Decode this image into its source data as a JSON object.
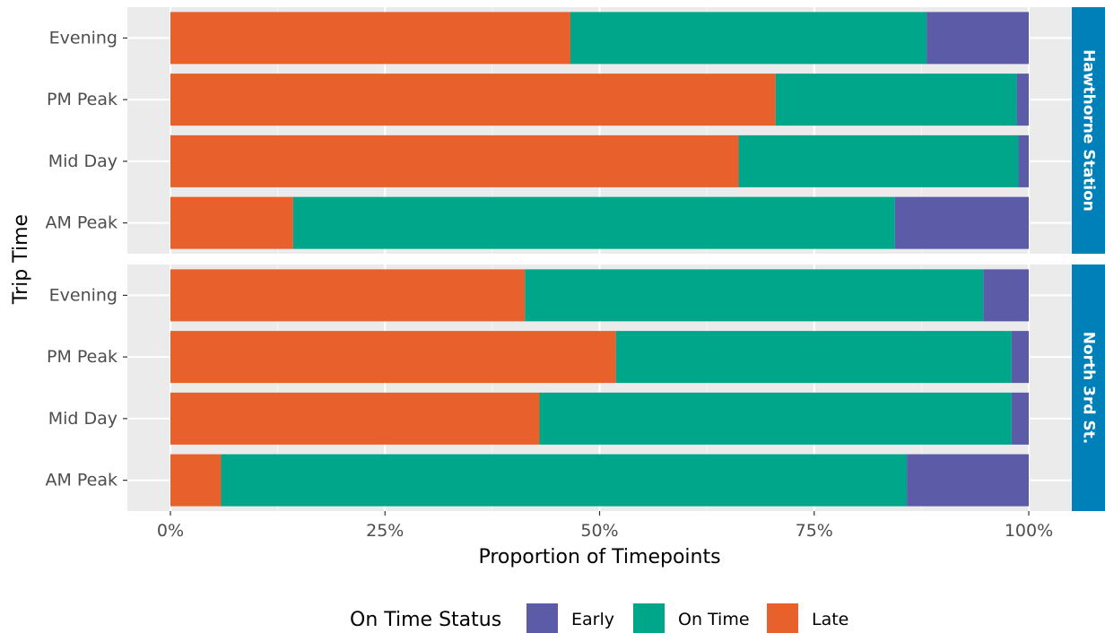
{
  "chart_data": {
    "type": "bar",
    "orientation": "horizontal",
    "stacked": "proportion",
    "xlabel": "Proportion of Timepoints",
    "ylabel": "Trip Time",
    "x_ticks": [
      "0%",
      "25%",
      "50%",
      "75%",
      "100%"
    ],
    "x_tick_values": [
      0,
      0.25,
      0.5,
      0.75,
      1.0
    ],
    "xlim": [
      0,
      1
    ],
    "grid": true,
    "legend": {
      "title": "On Time Status",
      "position": "bottom",
      "items": [
        {
          "name": "Early",
          "color": "#5B5BA8"
        },
        {
          "name": "On Time",
          "color": "#00A68A"
        },
        {
          "name": "Late",
          "color": "#E8602C"
        }
      ]
    },
    "stack_order": [
      "Late",
      "On Time",
      "Early"
    ],
    "panels": [
      {
        "strip": "Hawthorne Station",
        "categories": [
          "Evening",
          "PM Peak",
          "Mid Day",
          "AM Peak"
        ],
        "series": [
          {
            "name": "Late",
            "values": [
              0.466,
              0.705,
              0.662,
              0.143
            ]
          },
          {
            "name": "On Time",
            "values": [
              0.415,
              0.281,
              0.326,
              0.701
            ]
          },
          {
            "name": "Early",
            "values": [
              0.119,
              0.014,
              0.012,
              0.156
            ]
          }
        ]
      },
      {
        "strip": "North 3rd St.",
        "categories": [
          "Evening",
          "PM Peak",
          "Mid Day",
          "AM Peak"
        ],
        "series": [
          {
            "name": "Late",
            "values": [
              0.413,
              0.519,
              0.43,
              0.059
            ]
          },
          {
            "name": "On Time",
            "values": [
              0.534,
              0.461,
              0.55,
              0.799
            ]
          },
          {
            "name": "Early",
            "values": [
              0.053,
              0.02,
              0.02,
              0.142
            ]
          }
        ]
      }
    ]
  }
}
